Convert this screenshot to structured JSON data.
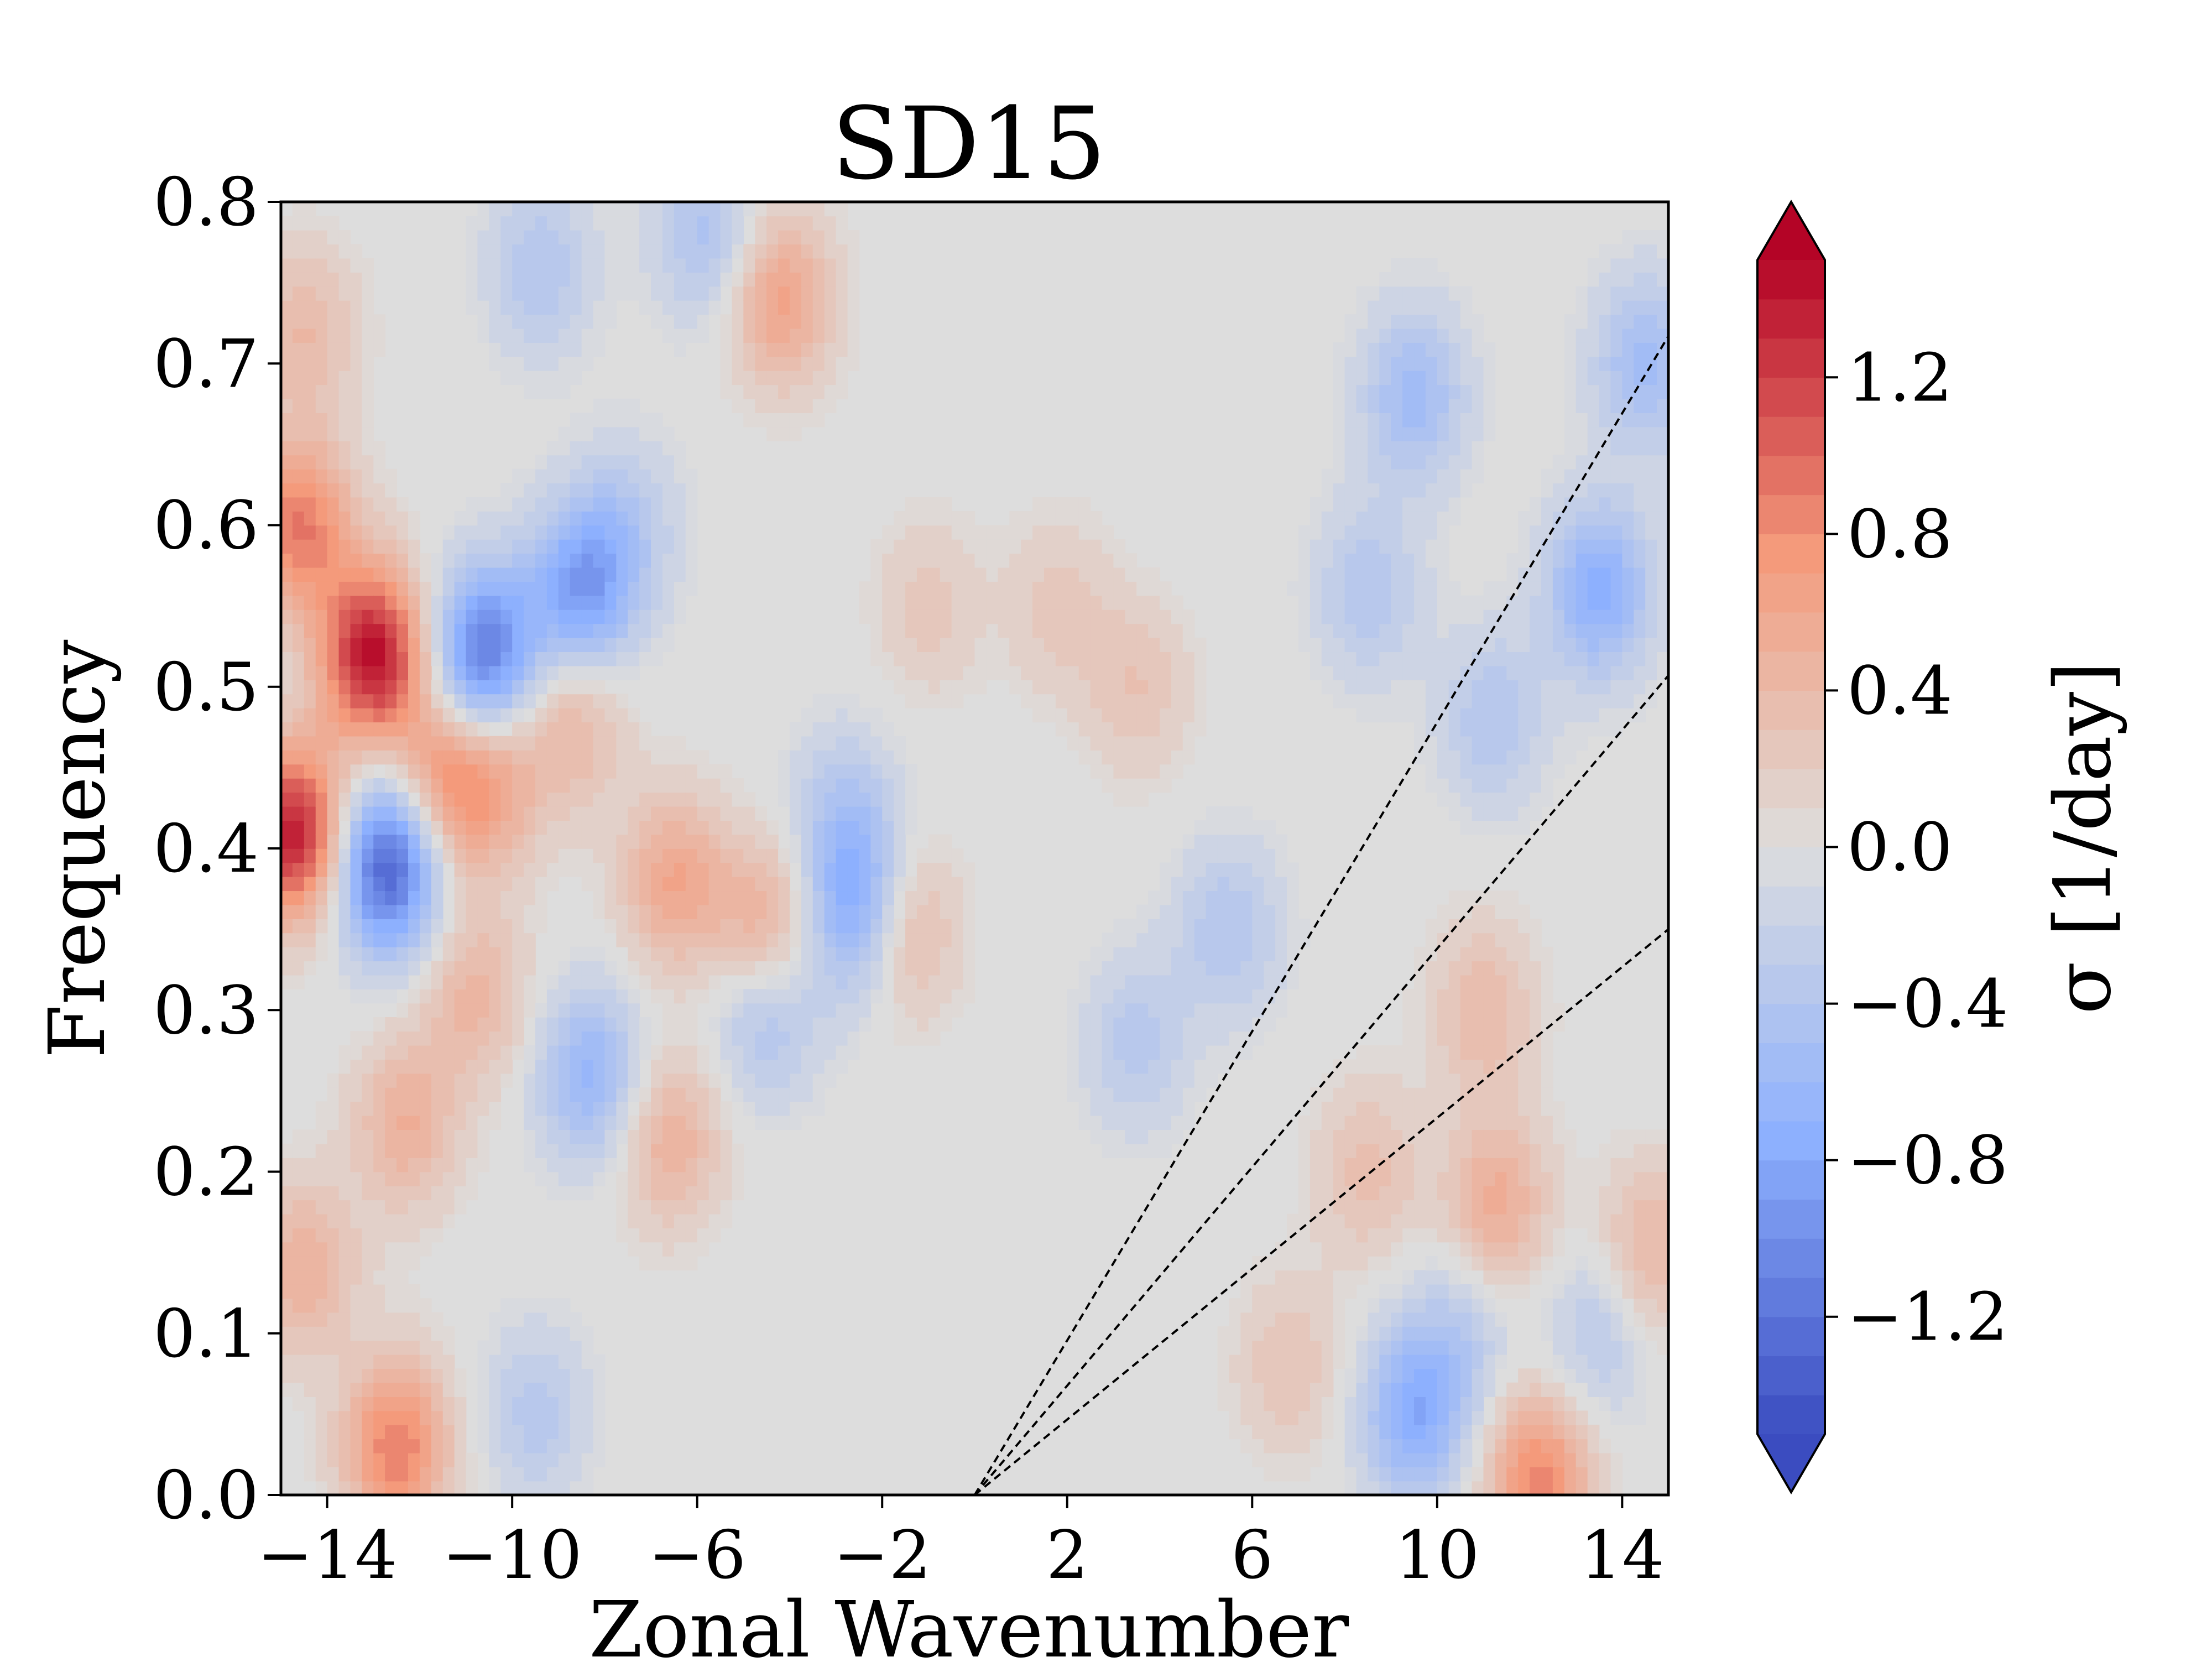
{
  "chart_data": {
    "type": "heatmap",
    "title": "SD15",
    "xlabel": "Zonal Wavenumber",
    "ylabel": "Frequency",
    "colorbar_label": "σ [1/day]",
    "colormap": "coolwarm",
    "extend": "both",
    "xlim": [
      -15,
      15
    ],
    "ylim": [
      0.0,
      0.8
    ],
    "clim": [
      -1.5,
      1.5
    ],
    "x_ticks": [
      -14,
      -10,
      -6,
      -2,
      2,
      6,
      10,
      14
    ],
    "x_tick_labels": [
      "−14",
      "−10",
      "−6",
      "−2",
      "2",
      "6",
      "10",
      "14"
    ],
    "y_ticks": [
      0.0,
      0.1,
      0.2,
      0.3,
      0.4,
      0.5,
      0.6,
      0.7,
      0.8
    ],
    "y_tick_labels": [
      "0.0",
      "0.1",
      "0.2",
      "0.3",
      "0.4",
      "0.5",
      "0.6",
      "0.7",
      "0.8"
    ],
    "colorbar_ticks": [
      -1.2,
      -0.8,
      -0.4,
      0.0,
      0.4,
      0.8,
      1.2
    ],
    "colorbar_tick_labels": [
      "−1.2",
      "−0.8",
      "−0.4",
      "0.0",
      "0.4",
      "0.8",
      "1.2"
    ],
    "grid": false,
    "features": [
      {
        "x": -14.7,
        "y": 0.41,
        "value": 1.4
      },
      {
        "x": -14.6,
        "y": 0.6,
        "value": 0.9
      },
      {
        "x": -14.5,
        "y": 0.14,
        "value": 0.5
      },
      {
        "x": -14.5,
        "y": 0.72,
        "value": 0.4
      },
      {
        "x": -13,
        "y": 0.52,
        "value": 1.45
      },
      {
        "x": -12.7,
        "y": 0.39,
        "value": -1.4
      },
      {
        "x": -10.6,
        "y": 0.52,
        "value": -1.15
      },
      {
        "x": -11.5,
        "y": 0.44,
        "value": 0.7
      },
      {
        "x": -10.4,
        "y": 0.44,
        "value": 0.5
      },
      {
        "x": -8.5,
        "y": 0.56,
        "value": -0.9
      },
      {
        "x": -8.3,
        "y": 0.26,
        "value": -0.65
      },
      {
        "x": -8.7,
        "y": 0.48,
        "value": 0.45
      },
      {
        "x": -7.5,
        "y": 0.6,
        "value": -0.3
      },
      {
        "x": -12.5,
        "y": 0.03,
        "value": 0.9
      },
      {
        "x": -12.3,
        "y": 0.23,
        "value": 0.5
      },
      {
        "x": -10.8,
        "y": 0.31,
        "value": 0.45
      },
      {
        "x": -6.5,
        "y": 0.38,
        "value": 0.6
      },
      {
        "x": -6.6,
        "y": 0.22,
        "value": 0.5
      },
      {
        "x": -4.5,
        "y": 0.35,
        "value": 0.6
      },
      {
        "x": -4.2,
        "y": 0.74,
        "value": 0.65
      },
      {
        "x": -4.5,
        "y": 0.3,
        "value": -0.5
      },
      {
        "x": -5.8,
        "y": 0.78,
        "value": -0.45
      },
      {
        "x": -2.5,
        "y": 0.36,
        "value": -0.85
      },
      {
        "x": -1.6,
        "y": 0.35,
        "value": 0.55
      },
      {
        "x": -2.8,
        "y": 0.42,
        "value": -0.4
      },
      {
        "x": -1,
        "y": 0.55,
        "value": 0.25
      },
      {
        "x": -9.5,
        "y": 0.05,
        "value": -0.35
      },
      {
        "x": -9.4,
        "y": 0.76,
        "value": -0.4
      },
      {
        "x": 9.5,
        "y": 0.68,
        "value": -0.55
      },
      {
        "x": 14.5,
        "y": 0.7,
        "value": -0.55
      },
      {
        "x": 13.5,
        "y": 0.56,
        "value": -0.75
      },
      {
        "x": 8.5,
        "y": 0.56,
        "value": -0.4
      },
      {
        "x": 11.2,
        "y": 0.48,
        "value": -0.4
      },
      {
        "x": 9.5,
        "y": 0.05,
        "value": -0.75
      },
      {
        "x": 12.2,
        "y": 0.01,
        "value": 0.85
      },
      {
        "x": 11.3,
        "y": 0.18,
        "value": 0.55
      },
      {
        "x": 14.6,
        "y": 0.15,
        "value": 0.45
      },
      {
        "x": 11,
        "y": 0.3,
        "value": 0.4
      },
      {
        "x": 8.5,
        "y": 0.2,
        "value": 0.35
      },
      {
        "x": 6.8,
        "y": 0.08,
        "value": 0.3
      },
      {
        "x": 3.5,
        "y": 0.5,
        "value": 0.3
      },
      {
        "x": 5.5,
        "y": 0.35,
        "value": -0.4
      },
      {
        "x": 3.5,
        "y": 0.28,
        "value": -0.35
      },
      {
        "x": 1.8,
        "y": 0.55,
        "value": 0.25
      },
      {
        "x": 10.5,
        "y": 0.1,
        "value": -0.3
      },
      {
        "x": 13.5,
        "y": 0.1,
        "value": -0.35
      }
    ],
    "reference_lines": [
      {
        "x": [
          0,
          15
        ],
        "y": [
          0,
          0.717
        ]
      },
      {
        "x": [
          0,
          15
        ],
        "y": [
          0,
          0.507
        ]
      },
      {
        "x": [
          0,
          15
        ],
        "y": [
          0,
          0.35
        ]
      }
    ]
  }
}
